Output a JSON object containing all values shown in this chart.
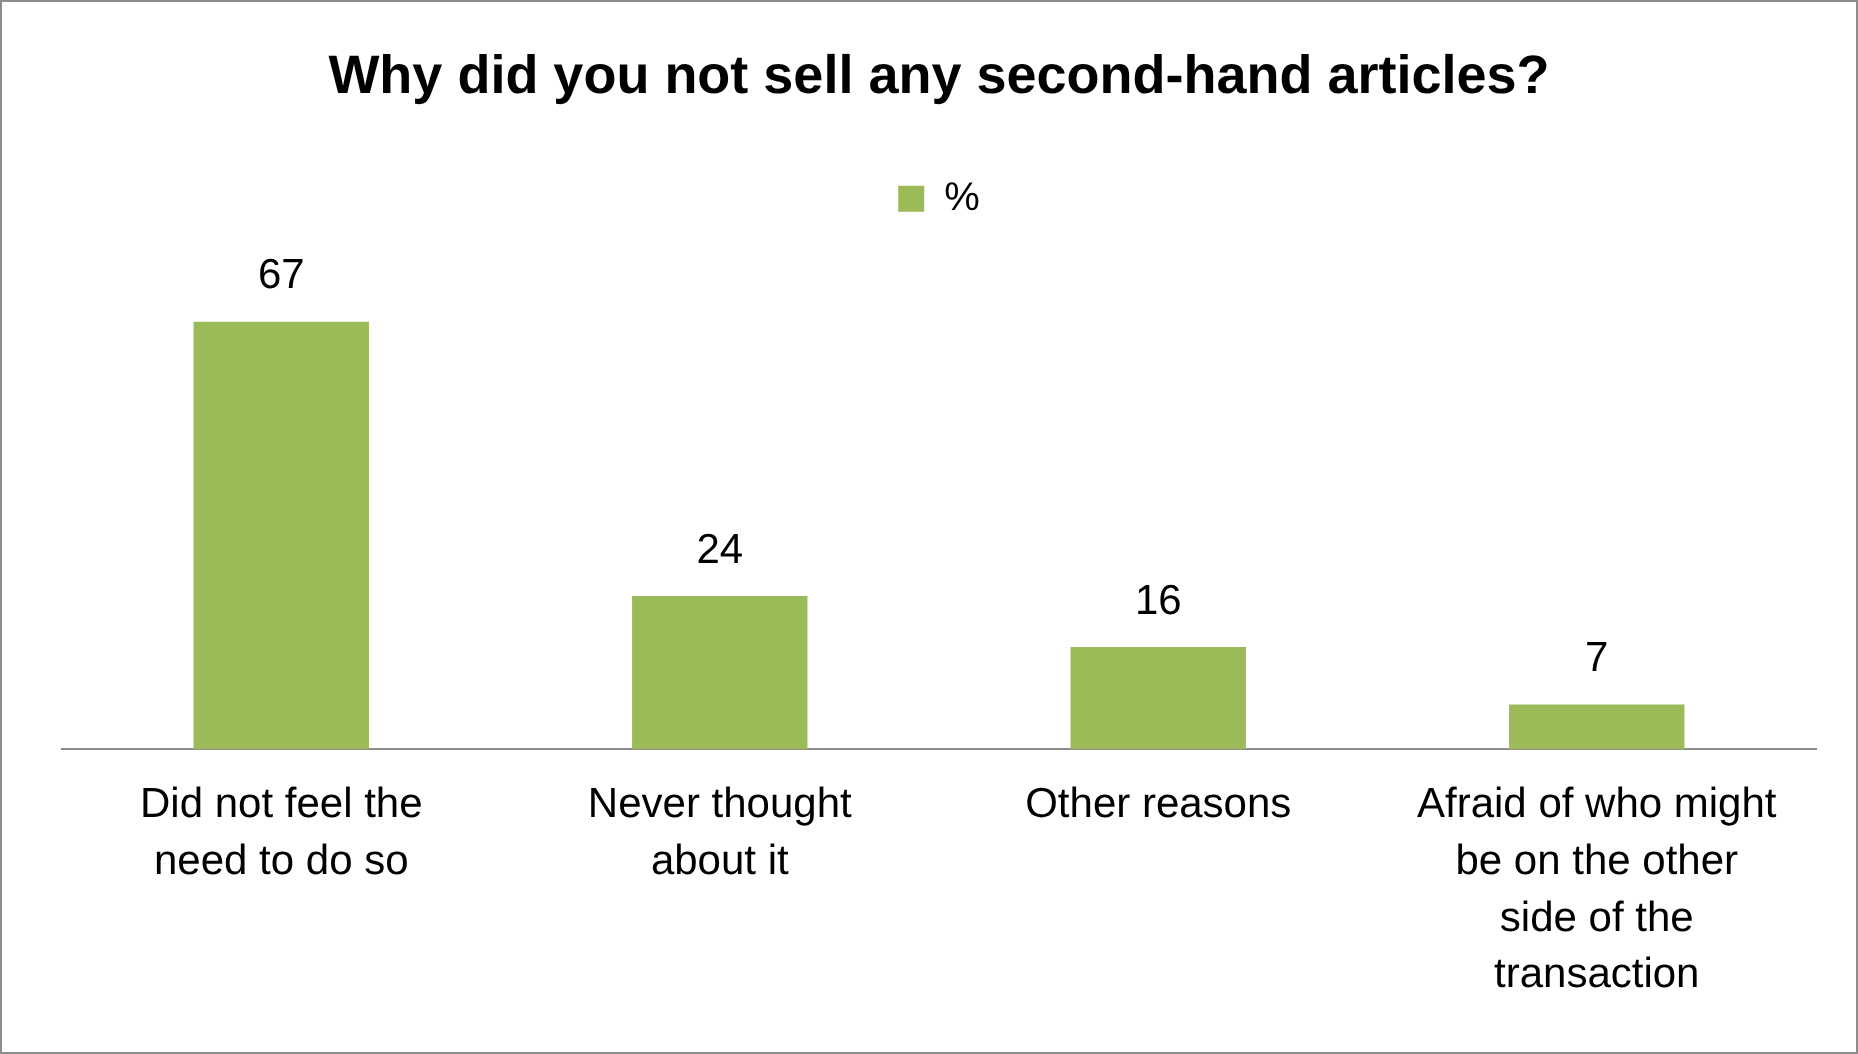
{
  "chart_data": {
    "type": "bar",
    "title": "Why did you not sell any second-hand articles?",
    "categories": [
      "Did not feel the need to do so",
      "Never thought about it",
      "Other reasons",
      "Afraid of who might be on the other side of the transaction"
    ],
    "series": [
      {
        "name": "%",
        "color": "#9bbb59",
        "values": [
          67,
          24,
          16,
          7
        ]
      }
    ],
    "data_labels": true,
    "legend": "top",
    "grid": false
  }
}
